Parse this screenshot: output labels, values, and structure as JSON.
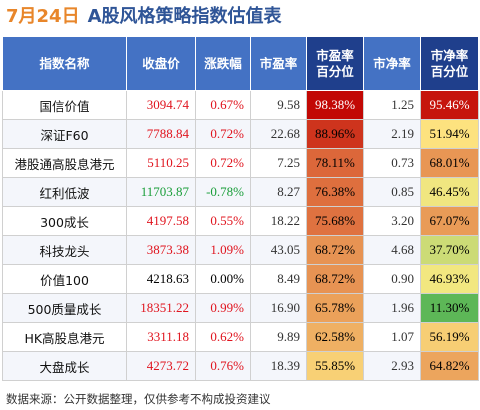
{
  "header": {
    "date": "7月24日",
    "title": "A股风格策略指数估值表"
  },
  "table": {
    "columns": [
      "指数名称",
      "收盘价",
      "涨跌幅",
      "市盈率",
      "市盈率\n百分位",
      "市净率",
      "市净率\n百分位"
    ],
    "rows": [
      {
        "name": "国信价值",
        "close": "3094.74",
        "change": "0.67%",
        "pe": "9.58",
        "pe_pct": "98.38%",
        "pb": "1.25",
        "pb_pct": "95.46%"
      },
      {
        "name": "深证F60",
        "close": "7788.84",
        "change": "0.72%",
        "pe": "22.68",
        "pe_pct": "88.96%",
        "pb": "2.19",
        "pb_pct": "51.94%"
      },
      {
        "name": "港股通高股息港元",
        "close": "5110.25",
        "change": "0.72%",
        "pe": "7.25",
        "pe_pct": "78.11%",
        "pb": "0.73",
        "pb_pct": "68.01%"
      },
      {
        "name": "红利低波",
        "close": "11703.87",
        "change": "-0.78%",
        "pe": "8.27",
        "pe_pct": "76.38%",
        "pb": "0.85",
        "pb_pct": "46.45%"
      },
      {
        "name": "300成长",
        "close": "4197.58",
        "change": "0.55%",
        "pe": "18.22",
        "pe_pct": "75.68%",
        "pb": "3.20",
        "pb_pct": "67.07%"
      },
      {
        "name": "科技龙头",
        "close": "3873.38",
        "change": "1.09%",
        "pe": "43.05",
        "pe_pct": "68.72%",
        "pb": "4.68",
        "pb_pct": "37.70%"
      },
      {
        "name": "价值100",
        "close": "4218.63",
        "change": "0.00%",
        "pe": "8.49",
        "pe_pct": "68.72%",
        "pb": "0.90",
        "pb_pct": "46.93%"
      },
      {
        "name": "500质量成长",
        "close": "18351.22",
        "change": "0.99%",
        "pe": "16.90",
        "pe_pct": "65.78%",
        "pb": "1.96",
        "pb_pct": "11.30%"
      },
      {
        "name": "HK高股息港元",
        "close": "3311.18",
        "change": "0.62%",
        "pe": "9.89",
        "pe_pct": "62.58%",
        "pb": "1.07",
        "pb_pct": "56.19%"
      },
      {
        "name": "大盘成长",
        "close": "4273.72",
        "change": "0.76%",
        "pe": "18.39",
        "pe_pct": "55.85%",
        "pb": "2.93",
        "pb_pct": "64.82%"
      }
    ]
  },
  "footer": "数据来源：公开数据整理，仅供参考不构成投资建议",
  "colors": {
    "title_date": "#E8862A",
    "title_main": "#2F5597",
    "header_bg": "#4472C4",
    "header_accent_bg": "#1F3F8C",
    "up": "#E0141E",
    "down": "#1A9E3A",
    "flat": "#000000",
    "heat_high": "#C00000",
    "heat_mid": "#FFEB84",
    "heat_low": "#2EA84A"
  }
}
